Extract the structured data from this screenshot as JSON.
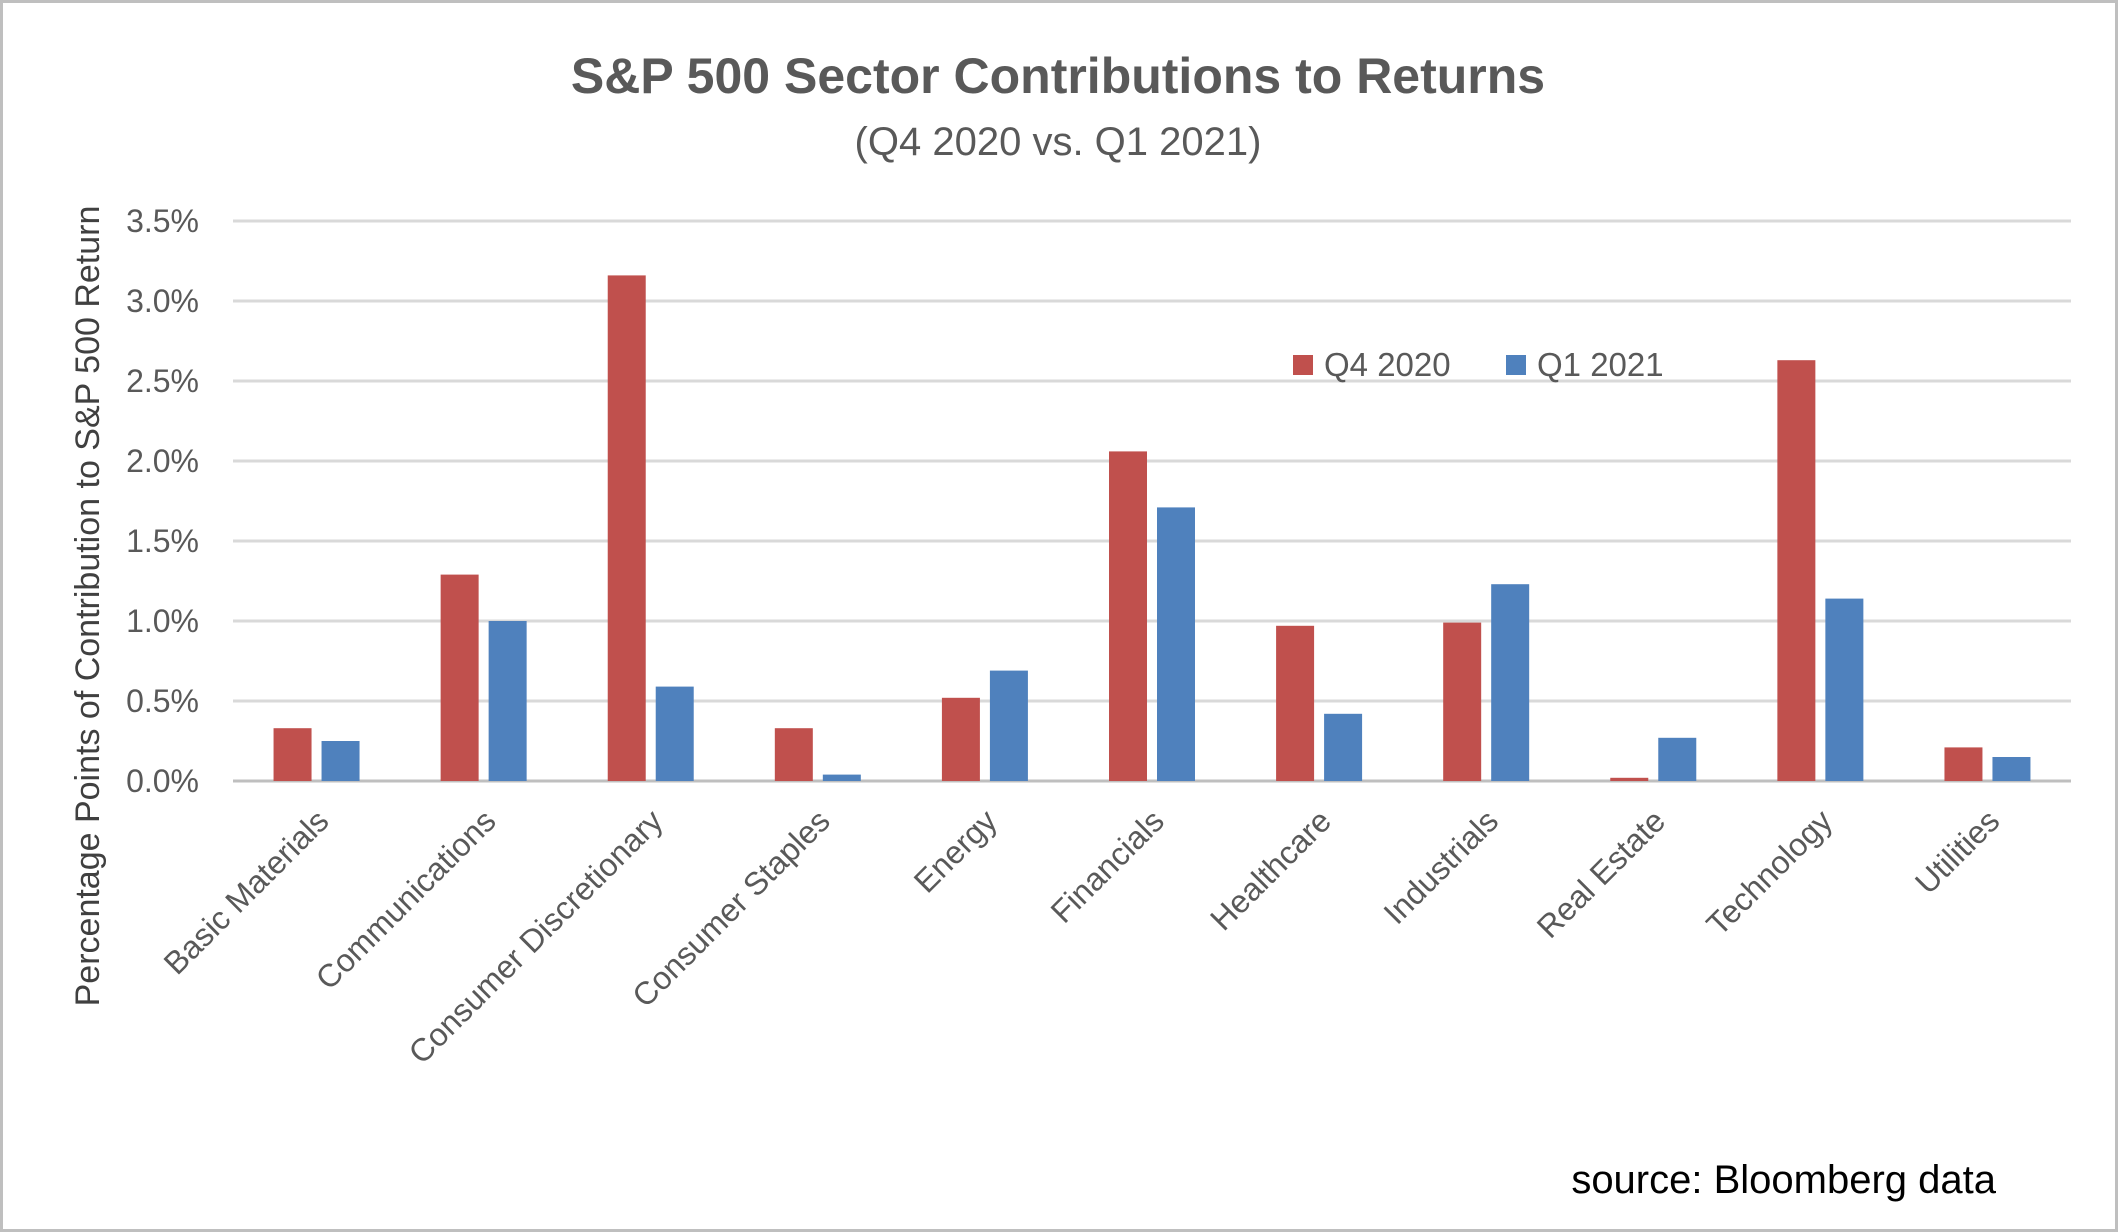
{
  "chart_data": {
    "type": "bar",
    "title": "S&P 500 Sector Contributions to Returns",
    "subtitle": "(Q4 2020 vs. Q1 2021)",
    "ylabel": "Percentage Points of Contribution to  S&P 500 Return",
    "xlabel": "",
    "source": "source: Bloomberg data",
    "ylim": [
      0,
      3.5
    ],
    "yticks": [
      "0.0%",
      "0.5%",
      "1.0%",
      "1.5%",
      "2.0%",
      "2.5%",
      "3.0%",
      "3.5%"
    ],
    "grid": true,
    "legend_position": "top-right",
    "categories": [
      "Basic Materials",
      "Communications",
      "Consumer Discretionary",
      "Consumer Staples",
      "Energy",
      "Financials",
      "Healthcare",
      "Industrials",
      "Real Estate",
      "Technology",
      "Utilities"
    ],
    "series": [
      {
        "name": "Q4 2020",
        "color": "#c0504d",
        "values": [
          0.33,
          1.29,
          3.16,
          0.33,
          0.52,
          2.06,
          0.97,
          0.99,
          0.02,
          2.63,
          0.21
        ]
      },
      {
        "name": "Q1 2021",
        "color": "#4f81bd",
        "values": [
          0.25,
          1.0,
          0.59,
          0.04,
          0.69,
          1.71,
          0.42,
          1.23,
          0.27,
          1.14,
          0.15
        ]
      }
    ]
  }
}
